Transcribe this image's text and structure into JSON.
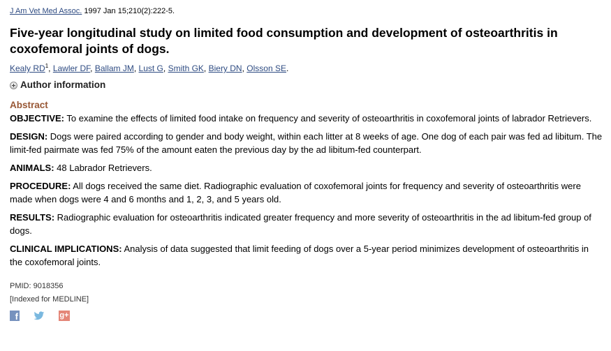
{
  "citation": {
    "journal": "J Am Vet Med Assoc.",
    "details": " 1997 Jan 15;210(2):222-5."
  },
  "title": "Five-year longitudinal study on limited food consumption and development of osteoarthritis in coxofemoral joints of dogs.",
  "authors": [
    {
      "name": "Kealy RD",
      "sup": "1"
    },
    {
      "name": "Lawler DF"
    },
    {
      "name": "Ballam JM"
    },
    {
      "name": "Lust G"
    },
    {
      "name": "Smith GK"
    },
    {
      "name": "Biery DN"
    },
    {
      "name": "Olsson SE"
    }
  ],
  "author_info_label": "Author information",
  "abstract": {
    "heading": "Abstract",
    "sections": [
      {
        "label": "OBJECTIVE:",
        "text": " To examine the effects of limited food intake on frequency and severity of osteoarthritis in coxofemoral joints of labrador Retrievers."
      },
      {
        "label": "DESIGN:",
        "text": " Dogs were paired according to gender and body weight, within each litter at 8 weeks of age. One dog of each pair was fed ad libitum. The limit-fed pairmate was fed 75% of the amount eaten the previous day by the ad libitum-fed counterpart."
      },
      {
        "label": "ANIMALS:",
        "text": " 48 Labrador Retrievers."
      },
      {
        "label": "PROCEDURE:",
        "text": " All dogs received the same diet. Radiographic evaluation of coxofemoral joints for frequency and severity of osteoarthritis were made when dogs were 4 and 6 months and 1, 2, 3, and 5 years old."
      },
      {
        "label": "RESULTS:",
        "text": " Radiographic evaluation for osteoarthritis indicated greater frequency and more severity of osteoarthritis in the ad libitum-fed group of dogs."
      },
      {
        "label": "CLINICAL IMPLICATIONS:",
        "text": " Analysis of data suggested that limit feeding of dogs over a 5-year period minimizes development of osteoarthritis in the coxofemoral joints."
      }
    ]
  },
  "pmid": "PMID: 9018356",
  "indexed": "[Indexed for MEDLINE]",
  "social": {
    "facebook_glyph": "f",
    "googleplus_glyph": "g+"
  },
  "colors": {
    "link": "#2e4b82",
    "abstract_heading": "#985735"
  }
}
